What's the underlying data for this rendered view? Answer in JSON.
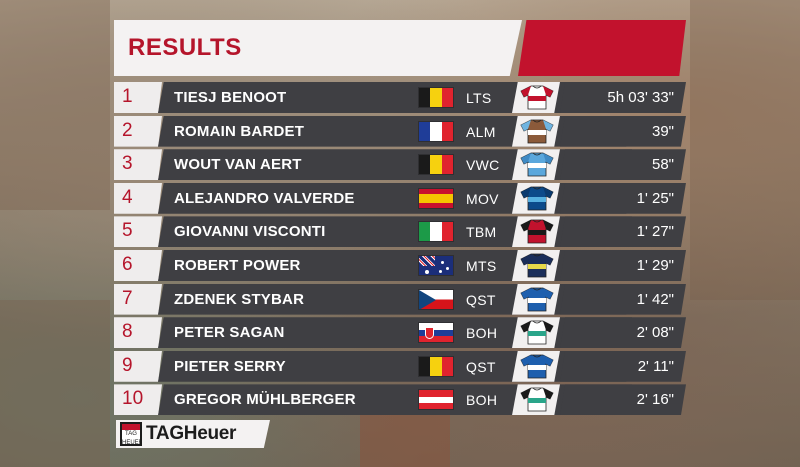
{
  "title": "RESULTS",
  "colors": {
    "accent": "#c2122d",
    "row_bg": "#3f3f43",
    "panel": "#f4f2f2"
  },
  "results": [
    {
      "pos": "1",
      "name": "TIESJ BENOOT",
      "country": "belgium",
      "team": "LTS",
      "time": "5h 03' 33\"",
      "jersey": {
        "body": "#ffffff",
        "sleeve": "#c2122d",
        "band": "#c2122d"
      }
    },
    {
      "pos": "2",
      "name": "ROMAIN BARDET",
      "country": "france",
      "team": "ALM",
      "time": "39\"",
      "jersey": {
        "body": "#8b5a3a",
        "sleeve": "#6fb4e0",
        "band": "#ffffff"
      }
    },
    {
      "pos": "3",
      "name": "WOUT VAN AERT",
      "country": "belgium",
      "team": "VWC",
      "time": "58\"",
      "jersey": {
        "body": "#5aa7dc",
        "sleeve": "#3f8ac4",
        "band": "#ffffff"
      }
    },
    {
      "pos": "4",
      "name": "ALEJANDRO VALVERDE",
      "country": "spain",
      "team": "MOV",
      "time": "1' 25\"",
      "jersey": {
        "body": "#0c4a8a",
        "sleeve": "#0a3a6e",
        "band": "#56b0e0"
      }
    },
    {
      "pos": "5",
      "name": "GIOVANNI VISCONTI",
      "country": "italy",
      "team": "TBM",
      "time": "1' 27\"",
      "jersey": {
        "body": "#c2122d",
        "sleeve": "#1a1a1a",
        "band": "#1a1a1a"
      }
    },
    {
      "pos": "6",
      "name": "ROBERT POWER",
      "country": "australia",
      "team": "MTS",
      "time": "1' 29\"",
      "jersey": {
        "body": "#1b2e5a",
        "sleeve": "#1b2e5a",
        "band": "#e6d84a"
      }
    },
    {
      "pos": "7",
      "name": "ZDENEK STYBAR",
      "country": "czech",
      "team": "QST",
      "time": "1' 42\"",
      "jersey": {
        "body": "#1e5fae",
        "sleeve": "#1e5fae",
        "band": "#ffffff"
      }
    },
    {
      "pos": "8",
      "name": "PETER SAGAN",
      "country": "slovakia",
      "team": "BOH",
      "time": "2' 08\"",
      "jersey": {
        "body": "#ffffff",
        "sleeve": "#1a1a1a",
        "band": "#2aa58a"
      }
    },
    {
      "pos": "9",
      "name": "PIETER SERRY",
      "country": "belgium",
      "team": "QST",
      "time": "2' 11\"",
      "jersey": {
        "body": "#1e5fae",
        "sleeve": "#1e5fae",
        "band": "#ffffff"
      }
    },
    {
      "pos": "10",
      "name": "GREGOR MÜHLBERGER",
      "country": "austria",
      "team": "BOH",
      "time": "2' 16\"",
      "jersey": {
        "body": "#ffffff",
        "sleeve": "#1a1a1a",
        "band": "#2aa58a"
      }
    }
  ],
  "sponsor": {
    "name": "TAGHeuer",
    "logo_text": "TAG HEUER"
  }
}
